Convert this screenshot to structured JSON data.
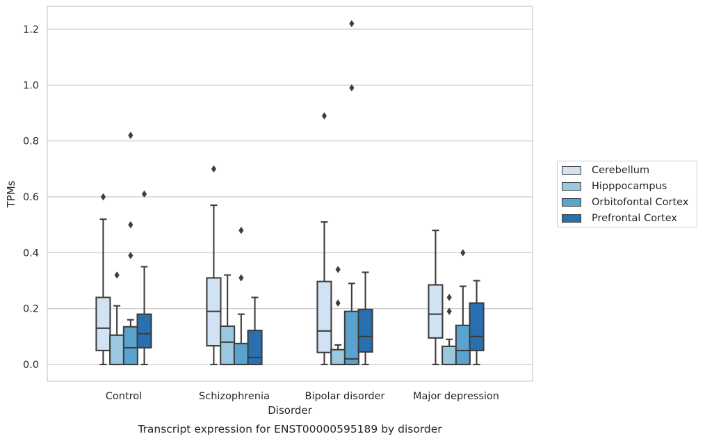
{
  "chart_data": {
    "type": "box",
    "title": "Transcript expression for ENST00000595189 by disorder",
    "xlabel": "Disorder",
    "ylabel": "TPMs",
    "ylim": [
      -0.06,
      1.28
    ],
    "yticks": [
      "0.0",
      "0.2",
      "0.4",
      "0.6",
      "0.8",
      "1.0",
      "1.2"
    ],
    "grid": "horizontal",
    "legend_placement": "right",
    "categories": [
      "Control",
      "Schizophrenia",
      "Bipolar disorder",
      "Major depression"
    ],
    "series": [
      {
        "name": "Cerebellum",
        "color": "#d1e2f2",
        "boxes": [
          {
            "whisker_low": 0.0,
            "q1": 0.05,
            "median": 0.13,
            "q3": 0.24,
            "whisker_high": 0.52,
            "outliers": [
              0.6
            ]
          },
          {
            "whisker_low": 0.0,
            "q1": 0.067,
            "median": 0.19,
            "q3": 0.31,
            "whisker_high": 0.57,
            "outliers": [
              0.7
            ]
          },
          {
            "whisker_low": 0.0,
            "q1": 0.043,
            "median": 0.12,
            "q3": 0.297,
            "whisker_high": 0.51,
            "outliers": [
              0.89
            ]
          },
          {
            "whisker_low": 0.0,
            "q1": 0.095,
            "median": 0.18,
            "q3": 0.285,
            "whisker_high": 0.48,
            "outliers": []
          }
        ]
      },
      {
        "name": "Hipppocampus",
        "color": "#9ac8e0",
        "boxes": [
          {
            "whisker_low": 0.0,
            "q1": 0.0,
            "median": 0.0,
            "q3": 0.105,
            "whisker_high": 0.21,
            "outliers": [
              0.32
            ]
          },
          {
            "whisker_low": 0.0,
            "q1": 0.0,
            "median": 0.08,
            "q3": 0.137,
            "whisker_high": 0.32,
            "outliers": []
          },
          {
            "whisker_low": 0.0,
            "q1": 0.0,
            "median": 0.0,
            "q3": 0.053,
            "whisker_high": 0.07,
            "outliers": [
              0.34,
              0.22
            ]
          },
          {
            "whisker_low": 0.0,
            "q1": 0.0,
            "median": 0.0,
            "q3": 0.065,
            "whisker_high": 0.09,
            "outliers": [
              0.24,
              0.19
            ]
          }
        ]
      },
      {
        "name": "Orbitofontal Cortex",
        "color": "#5ba3cf",
        "boxes": [
          {
            "whisker_low": 0.0,
            "q1": 0.0,
            "median": 0.06,
            "q3": 0.135,
            "whisker_high": 0.16,
            "outliers": [
              0.82,
              0.5,
              0.39
            ]
          },
          {
            "whisker_low": 0.0,
            "q1": 0.0,
            "median": 0.0,
            "q3": 0.075,
            "whisker_high": 0.18,
            "outliers": [
              0.48,
              0.31
            ]
          },
          {
            "whisker_low": 0.0,
            "q1": 0.0,
            "median": 0.02,
            "q3": 0.19,
            "whisker_high": 0.29,
            "outliers": [
              1.22,
              0.99
            ]
          },
          {
            "whisker_low": 0.0,
            "q1": 0.0,
            "median": 0.05,
            "q3": 0.14,
            "whisker_high": 0.28,
            "outliers": [
              0.4
            ]
          }
        ]
      },
      {
        "name": "Prefrontal Cortex",
        "color": "#2a70b0",
        "boxes": [
          {
            "whisker_low": 0.0,
            "q1": 0.06,
            "median": 0.11,
            "q3": 0.18,
            "whisker_high": 0.35,
            "outliers": [
              0.61
            ]
          },
          {
            "whisker_low": 0.0,
            "q1": 0.0,
            "median": 0.025,
            "q3": 0.122,
            "whisker_high": 0.24,
            "outliers": []
          },
          {
            "whisker_low": 0.0,
            "q1": 0.045,
            "median": 0.1,
            "q3": 0.197,
            "whisker_high": 0.33,
            "outliers": []
          },
          {
            "whisker_low": 0.0,
            "q1": 0.05,
            "median": 0.1,
            "q3": 0.22,
            "whisker_high": 0.3,
            "outliers": []
          }
        ]
      }
    ]
  }
}
